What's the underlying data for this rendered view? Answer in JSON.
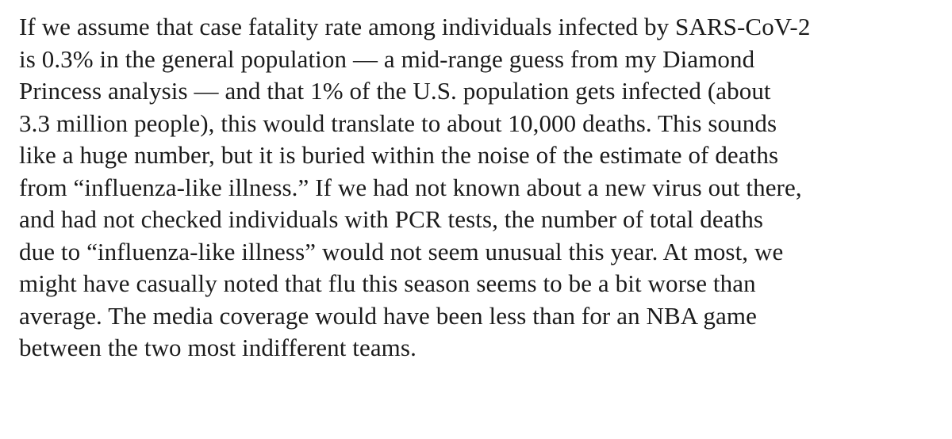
{
  "article": {
    "lines": [
      "If we assume that case fatality rate among individuals infected by SARS-CoV-2",
      "is 0.3% in the general population — a mid-range guess from my Diamond",
      "Princess analysis — and that 1% of the U.S. population gets infected (about",
      "3.3 million people), this would translate to about 10,000 deaths. This sounds",
      "like a huge number, but it is buried within the noise of the estimate of deaths",
      "from “influenza-like illness.” If we had not known about a new virus out there,",
      "and had not checked individuals with PCR tests, the number of total deaths",
      "due to “influenza-like illness” would not seem unusual this year. At most, we",
      "might have casually noted that flu this season seems to be a bit worse than",
      "average. The media coverage would have been less than for an NBA game",
      "between the two most indifferent teams."
    ]
  }
}
